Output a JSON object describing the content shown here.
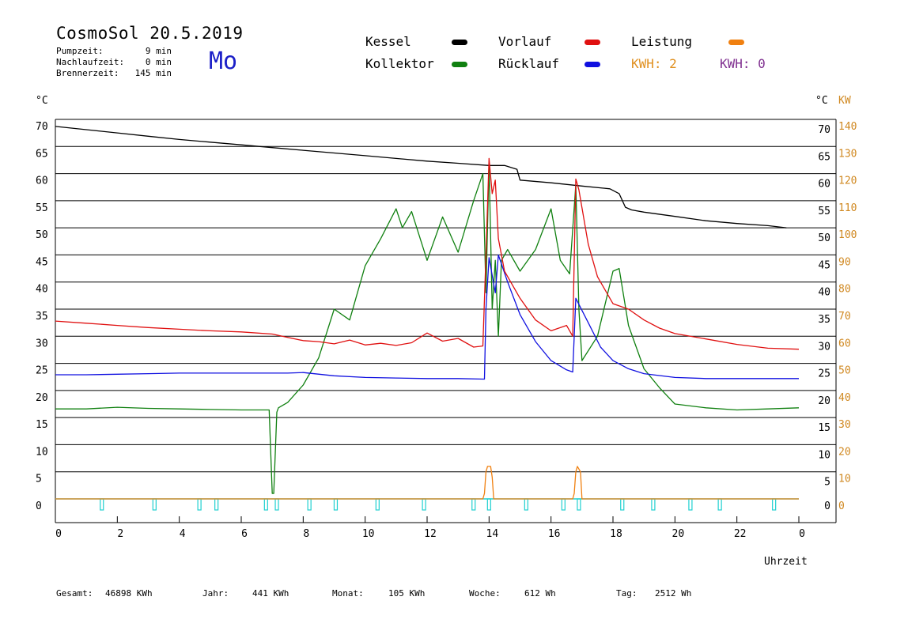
{
  "header": {
    "title": "CosmoSol 20.5.2019",
    "day": "Mo",
    "info": [
      {
        "label": "Pumpzeit:",
        "value": "9 min"
      },
      {
        "label": "Nachlaufzeit:",
        "value": "0 min"
      },
      {
        "label": "Brennerzeit:",
        "value": "145 min"
      }
    ]
  },
  "legend": [
    {
      "label": "Kessel",
      "color": "#000000"
    },
    {
      "label": "Vorlauf",
      "color": "#e01010"
    },
    {
      "label": "Leistung",
      "color": "#f08010"
    },
    {
      "label": "Kollektor",
      "color": "#108010"
    },
    {
      "label": "Rücklauf",
      "color": "#1010e0"
    }
  ],
  "kwh": [
    {
      "text": "KWH: 2",
      "color": "#e09020"
    },
    {
      "text": "KWH: 0",
      "color": "#803090"
    }
  ],
  "footer": [
    {
      "label": "Gesamt:",
      "value": "46898 KWh"
    },
    {
      "label": "Jahr:",
      "value": "441 KWh"
    },
    {
      "label": "Monat:",
      "value": "105 KWh"
    },
    {
      "label": "Woche:",
      "value": "612 Wh"
    },
    {
      "label": "Tag:",
      "value": "2512 Wh"
    }
  ],
  "chart_data": {
    "type": "line",
    "xlabel": "Uhrzeit",
    "y_left_unit": "°C",
    "y_right_unit": "°C",
    "y2_unit": "KW",
    "xlim": [
      0,
      24
    ],
    "ylim": [
      0,
      70
    ],
    "y2lim": [
      0,
      140
    ],
    "x_ticks": [
      "0",
      "2",
      "4",
      "6",
      "8",
      "10",
      "12",
      "14",
      "16",
      "18",
      "20",
      "22",
      "0"
    ],
    "y_ticks": [
      "0",
      "5",
      "10",
      "15",
      "20",
      "25",
      "30",
      "35",
      "40",
      "45",
      "50",
      "55",
      "60",
      "65",
      "70"
    ],
    "y2_ticks": [
      "0",
      "10",
      "20",
      "30",
      "40",
      "50",
      "60",
      "70",
      "80",
      "90",
      "100",
      "110",
      "120",
      "130",
      "140"
    ],
    "grid": true,
    "series": [
      {
        "name": "Kessel",
        "color": "#000000",
        "x": [
          0,
          1,
          2,
          3,
          4,
          5,
          6,
          7,
          8,
          9,
          10,
          11,
          12,
          13,
          14,
          14.5,
          14.9,
          15,
          16,
          17,
          17.9,
          18.2,
          18.4,
          18.6,
          19,
          20,
          21,
          22,
          23,
          23.6
        ],
        "y": [
          68.7,
          68.1,
          67.5,
          66.9,
          66.3,
          65.8,
          65.3,
          64.8,
          64.3,
          63.8,
          63.3,
          62.8,
          62.3,
          61.9,
          61.5,
          61.5,
          60.8,
          58.8,
          58.3,
          57.7,
          57.2,
          56.3,
          53.8,
          53.3,
          52.9,
          52.1,
          51.3,
          50.8,
          50.4,
          50.0
        ]
      },
      {
        "name": "Vorlauf",
        "color": "#e01010",
        "x": [
          0,
          1,
          2,
          3,
          4,
          5,
          6,
          7,
          7.5,
          8,
          8.5,
          9,
          9.5,
          10,
          10.5,
          11,
          11.5,
          12,
          12.5,
          13,
          13.5,
          13.8,
          13.9,
          14.0,
          14.1,
          14.2,
          14.3,
          14.5,
          15,
          15.5,
          16,
          16.5,
          16.7,
          16.8,
          16.9,
          17.2,
          17.5,
          18,
          18.5,
          19,
          19.5,
          20,
          21,
          22,
          23,
          24
        ],
        "y": [
          32.8,
          32.4,
          32.0,
          31.6,
          31.3,
          31.0,
          30.8,
          30.4,
          29.8,
          29.2,
          29.0,
          28.6,
          29.3,
          28.4,
          28.7,
          28.3,
          28.8,
          30.6,
          29.1,
          29.6,
          28.0,
          28.2,
          45.0,
          62.8,
          56.3,
          58.8,
          48.0,
          42.0,
          37.0,
          33.0,
          31.0,
          32.0,
          30.0,
          59.0,
          57.0,
          47.0,
          41.0,
          36.0,
          35.0,
          33.0,
          31.5,
          30.5,
          29.5,
          28.5,
          27.8,
          27.6
        ]
      },
      {
        "name": "Rücklauf",
        "color": "#1010e0",
        "x": [
          0,
          1,
          2,
          3,
          4,
          5,
          6,
          7,
          7.5,
          8,
          9,
          10,
          11,
          12,
          13,
          13.85,
          13.9,
          14.0,
          14.2,
          14.3,
          14.6,
          15,
          15.5,
          16,
          16.5,
          16.7,
          16.8,
          17.2,
          17.6,
          18,
          18.5,
          19,
          20,
          21,
          22,
          23,
          24
        ],
        "y": [
          22.9,
          22.9,
          23.0,
          23.1,
          23.2,
          23.2,
          23.2,
          23.2,
          23.2,
          23.3,
          22.7,
          22.4,
          22.3,
          22.2,
          22.2,
          22.1,
          35.0,
          44.5,
          38.0,
          45.0,
          40.0,
          34.0,
          29.0,
          25.5,
          23.8,
          23.4,
          37.0,
          32.5,
          28.0,
          25.5,
          24.0,
          23.1,
          22.4,
          22.2,
          22.2,
          22.2,
          22.2
        ]
      },
      {
        "name": "Kollektor",
        "color": "#108010",
        "x": [
          0,
          1,
          2,
          3,
          4,
          5,
          6,
          6.9,
          7.0,
          7.05,
          7.15,
          7.2,
          7.5,
          8,
          8.5,
          9,
          9.5,
          10,
          10.5,
          11,
          11.2,
          11.5,
          12,
          12.5,
          13,
          13.5,
          13.8,
          13.9,
          14.0,
          14.1,
          14.2,
          14.3,
          14.4,
          14.6,
          15,
          15.5,
          16,
          16.3,
          16.6,
          16.8,
          16.9,
          17.0,
          17.5,
          18,
          18.2,
          18.5,
          19,
          19.5,
          20,
          21,
          22,
          23,
          24
        ],
        "y": [
          16.6,
          16.6,
          16.9,
          16.7,
          16.6,
          16.5,
          16.4,
          16.4,
          1.0,
          1.0,
          16.0,
          16.8,
          17.8,
          21.0,
          26.0,
          35.0,
          33.0,
          43.0,
          48.0,
          53.5,
          50.0,
          53.0,
          44.0,
          52.0,
          45.5,
          55.0,
          60.0,
          38.0,
          62.0,
          35.0,
          44.0,
          30.0,
          44.0,
          46.0,
          42.0,
          46.0,
          53.5,
          44.0,
          41.5,
          58.0,
          35.0,
          25.5,
          30.0,
          42.0,
          42.5,
          32.0,
          24.0,
          20.5,
          17.5,
          16.8,
          16.4,
          16.6,
          16.8
        ]
      },
      {
        "name": "Leistung",
        "color": "#f08010",
        "axis": "right",
        "x": [
          0,
          13.8,
          13.85,
          13.9,
          13.95,
          14.05,
          14.1,
          14.15,
          16.7,
          16.75,
          16.8,
          16.85,
          16.95,
          17.0,
          24
        ],
        "y": [
          0,
          0,
          2,
          10,
          12,
          12,
          8,
          0,
          0,
          2,
          10,
          12,
          10,
          0,
          0
        ]
      }
    ],
    "pump_markers_x": [
      1.5,
      3.2,
      4.65,
      5.2,
      6.8,
      7.15,
      8.2,
      9.05,
      10.4,
      11.9,
      13.5,
      14.0,
      15.2,
      16.4,
      16.9,
      18.3,
      19.3,
      20.5,
      21.45,
      23.2
    ]
  }
}
